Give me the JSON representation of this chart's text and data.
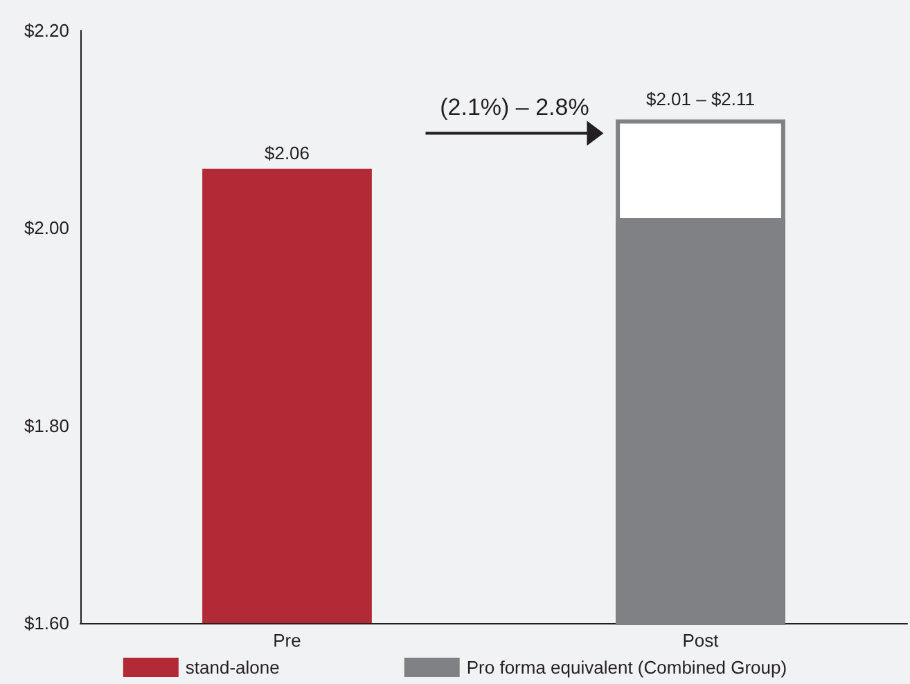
{
  "chart_data": {
    "type": "bar",
    "categories": [
      "Pre",
      "Post"
    ],
    "series": [
      {
        "name": "stand-alone",
        "color": "#b22a36",
        "values": [
          2.06,
          null
        ],
        "value_labels": [
          "$2.06",
          null
        ]
      },
      {
        "color": "#ffffff",
        "values": [
          null,
          2.11
        ]
      },
      {
        "name": "Pro forma equivalent (Combined Group)",
        "color": "#808184",
        "values": [
          null,
          2.01
        ]
      }
    ],
    "ylim": [
      1.6,
      2.2
    ],
    "yticks": [
      {
        "value": 1.6,
        "label": "$1.60"
      },
      {
        "value": 1.8,
        "label": "$1.80"
      },
      {
        "value": 2.0,
        "label": "$2.00"
      },
      {
        "value": 2.2,
        "label": "$2.20"
      }
    ],
    "annotations": [
      "(2.1%) – 2.8%",
      {
        "text": "$2.01 – $2.11",
        "x": "Post",
        "y": 2.11
      }
    ],
    "grid": false,
    "legend": "bottom"
  }
}
